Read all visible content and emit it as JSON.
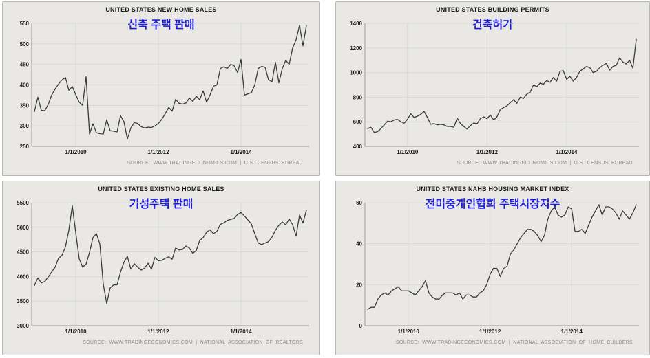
{
  "page": {
    "background": "#ffffff"
  },
  "colors": {
    "panel_bg": "#e9e8e5",
    "panel_border": "#b7b7b3",
    "grid": "#d8d7d3",
    "axis": "#9a9a96",
    "line": "#3a3a3a",
    "title_text": "#1c1c1c",
    "subtitle_blue": "#1a1ae6",
    "source_text": "#8b8b87"
  },
  "chart_data": [
    {
      "type": "line",
      "title": "UNITED STATES NEW HOME SALES",
      "subtitle": "신축 주택 판매",
      "source": "SOURCE: WWW.TRADINGECONOMICS.COM | U.S. CENSUS BUREAU",
      "ylim": [
        250,
        550
      ],
      "y_ticks": [
        250,
        300,
        350,
        400,
        450,
        500,
        550
      ],
      "x_ticks": [
        {
          "label": "1/1/2010",
          "index": 12
        },
        {
          "label": "1/1/2012",
          "index": 36
        },
        {
          "label": "1/1/2014",
          "index": 60
        }
      ],
      "values": [
        335,
        370,
        338,
        337,
        352,
        375,
        390,
        402,
        412,
        418,
        387,
        396,
        376,
        358,
        350,
        420,
        280,
        305,
        283,
        281,
        280,
        315,
        288,
        287,
        285,
        325,
        310,
        268,
        295,
        308,
        306,
        298,
        295,
        297,
        296,
        300,
        306,
        316,
        330,
        345,
        336,
        365,
        355,
        353,
        356,
        368,
        360,
        372,
        364,
        385,
        358,
        375,
        397,
        400,
        440,
        444,
        440,
        450,
        447,
        430,
        462,
        375,
        378,
        381,
        400,
        440,
        445,
        443,
        412,
        408,
        455,
        405,
        440,
        460,
        450,
        490,
        510,
        545,
        495,
        545
      ]
    },
    {
      "type": "line",
      "title": "UNITED STATES BUILDING PERMITS",
      "subtitle": "건축허가",
      "source": "SOURCE: WWW.TRADINGECONOMICS.COM | U.S. CENSUS BUREAU",
      "ylim": [
        400,
        1400
      ],
      "y_ticks": [
        400,
        600,
        800,
        1000,
        1200,
        1400
      ],
      "x_ticks": [
        {
          "label": "1/1/2010",
          "index": 12
        },
        {
          "label": "1/1/2012",
          "index": 36
        },
        {
          "label": "1/1/2014",
          "index": 60
        }
      ],
      "values": [
        545,
        555,
        512,
        520,
        545,
        575,
        605,
        600,
        615,
        620,
        600,
        588,
        620,
        665,
        635,
        645,
        660,
        685,
        635,
        580,
        585,
        575,
        580,
        575,
        562,
        562,
        555,
        630,
        585,
        562,
        540,
        570,
        590,
        585,
        625,
        640,
        625,
        655,
        615,
        640,
        700,
        715,
        730,
        755,
        780,
        750,
        800,
        790,
        825,
        840,
        900,
        885,
        915,
        905,
        935,
        920,
        960,
        930,
        1010,
        1015,
        945,
        970,
        930,
        960,
        1010,
        1030,
        1050,
        1040,
        1000,
        1010,
        1040,
        1060,
        1075,
        1020,
        1050,
        1060,
        1120,
        1085,
        1070,
        1100,
        1035,
        1270
      ]
    },
    {
      "type": "line",
      "title": "UNITED STATES EXISTING HOME SALES",
      "subtitle": "기성주택 판매",
      "source": "SOURCE: WWW.TRADINGECONOMICS.COM | NATIONAL ASSOCIATION OF REALTORS",
      "ylim": [
        3000,
        5500
      ],
      "y_ticks": [
        3000,
        3500,
        4000,
        4500,
        5000,
        5500
      ],
      "x_ticks": [
        {
          "label": "1/1/2010",
          "index": 12
        },
        {
          "label": "1/1/2012",
          "index": 36
        },
        {
          "label": "1/1/2014",
          "index": 60
        }
      ],
      "values": [
        3820,
        3970,
        3870,
        3900,
        3990,
        4090,
        4190,
        4370,
        4430,
        4600,
        4940,
        5440,
        4890,
        4360,
        4190,
        4250,
        4490,
        4790,
        4870,
        4660,
        3840,
        3450,
        3770,
        3830,
        3830,
        4090,
        4290,
        4410,
        4150,
        4260,
        4190,
        4130,
        4170,
        4270,
        4150,
        4390,
        4320,
        4330,
        4370,
        4400,
        4350,
        4580,
        4540,
        4550,
        4620,
        4580,
        4470,
        4530,
        4730,
        4790,
        4900,
        4950,
        4870,
        4920,
        5060,
        5090,
        5140,
        5160,
        5180,
        5260,
        5300,
        5230,
        5150,
        5070,
        4870,
        4680,
        4650,
        4680,
        4710,
        4800,
        4940,
        5040,
        5110,
        5050,
        5170,
        5050,
        4820,
        5250,
        5090,
        5350
      ]
    },
    {
      "type": "line",
      "title": "UNITED STATES NAHB HOUSING MARKET INDEX",
      "subtitle": "전미중개인협회 주택시장지수",
      "source": "SOURCE: WWW.TRADINGECONOMICS.COM | NATIONAL ASSOCIATION OF HOME BUILDERS",
      "ylim": [
        0,
        60
      ],
      "y_ticks": [
        0,
        20,
        40,
        60
      ],
      "x_ticks": [
        {
          "label": "1/1/2010",
          "index": 12
        },
        {
          "label": "1/1/2012",
          "index": 36
        },
        {
          "label": "1/1/2014",
          "index": 60
        }
      ],
      "values": [
        8,
        9,
        9,
        13,
        15,
        16,
        15,
        17,
        18,
        19,
        17,
        17,
        17,
        16,
        15,
        17,
        19,
        22,
        16,
        14,
        13,
        13,
        15,
        16,
        16,
        16,
        15,
        16,
        13,
        15,
        15,
        14,
        14,
        16,
        17,
        20,
        25,
        28,
        28,
        24,
        28,
        29,
        35,
        37,
        40,
        43,
        45,
        47,
        47,
        46,
        44,
        41,
        44,
        52,
        56,
        58,
        54,
        53,
        54,
        58,
        57,
        46,
        46,
        47,
        45,
        49,
        53,
        56,
        59,
        54,
        58,
        58,
        57,
        55,
        52,
        56,
        54,
        52,
        55,
        59
      ]
    }
  ]
}
